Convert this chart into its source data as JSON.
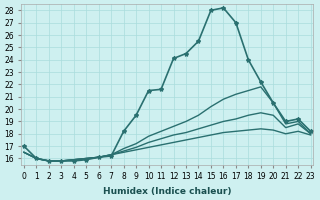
{
  "xlabel": "Humidex (Indice chaleur)",
  "ylabel": "",
  "bg_color": "#cef0f0",
  "grid_color": "#aadddd",
  "line_color": "#2a7070",
  "xlim": [
    0,
    23
  ],
  "ylim": [
    15.5,
    28.5
  ],
  "yticks": [
    16,
    17,
    18,
    19,
    20,
    21,
    22,
    23,
    24,
    25,
    26,
    27,
    28
  ],
  "xticks": [
    0,
    1,
    2,
    3,
    4,
    5,
    6,
    7,
    8,
    9,
    10,
    11,
    12,
    13,
    14,
    15,
    16,
    17,
    18,
    19,
    20,
    21,
    22,
    23
  ],
  "series": [
    {
      "x": [
        0,
        1,
        2,
        3,
        4,
        5,
        6,
        7,
        8,
        9,
        10,
        11,
        12,
        13,
        14,
        15,
        16,
        17,
        18,
        19,
        20,
        21,
        22,
        23
      ],
      "y": [
        17.0,
        16.0,
        15.8,
        15.8,
        15.8,
        15.9,
        16.1,
        16.2,
        18.2,
        19.5,
        21.5,
        21.6,
        24.1,
        24.5,
        25.5,
        28.0,
        28.2,
        27.0,
        24.0,
        22.2,
        20.5,
        19.0,
        19.2,
        18.2
      ],
      "marker": "*",
      "linewidth": 1.2
    },
    {
      "x": [
        0,
        1,
        2,
        3,
        4,
        5,
        6,
        7,
        8,
        9,
        10,
        11,
        12,
        13,
        14,
        15,
        16,
        17,
        18,
        19,
        20,
        21,
        22,
        23
      ],
      "y": [
        16.5,
        16.0,
        15.8,
        15.8,
        15.9,
        16.0,
        16.1,
        16.3,
        16.8,
        17.2,
        17.8,
        18.2,
        18.6,
        19.0,
        19.5,
        20.2,
        20.8,
        21.2,
        21.5,
        21.8,
        20.5,
        18.8,
        19.0,
        18.0
      ],
      "marker": null,
      "linewidth": 1.0
    },
    {
      "x": [
        0,
        1,
        2,
        3,
        4,
        5,
        6,
        7,
        8,
        9,
        10,
        11,
        12,
        13,
        14,
        15,
        16,
        17,
        18,
        19,
        20,
        21,
        22,
        23
      ],
      "y": [
        16.5,
        16.0,
        15.8,
        15.8,
        15.9,
        16.0,
        16.1,
        16.3,
        16.6,
        16.9,
        17.3,
        17.6,
        17.9,
        18.1,
        18.4,
        18.7,
        19.0,
        19.2,
        19.5,
        19.7,
        19.5,
        18.5,
        18.8,
        18.0
      ],
      "marker": null,
      "linewidth": 1.0
    },
    {
      "x": [
        0,
        1,
        2,
        3,
        4,
        5,
        6,
        7,
        8,
        9,
        10,
        11,
        12,
        13,
        14,
        15,
        16,
        17,
        18,
        19,
        20,
        21,
        22,
        23
      ],
      "y": [
        16.5,
        16.0,
        15.8,
        15.8,
        15.9,
        16.0,
        16.1,
        16.3,
        16.5,
        16.7,
        16.9,
        17.1,
        17.3,
        17.5,
        17.7,
        17.9,
        18.1,
        18.2,
        18.3,
        18.4,
        18.3,
        18.0,
        18.2,
        17.9
      ],
      "marker": null,
      "linewidth": 1.0
    }
  ]
}
